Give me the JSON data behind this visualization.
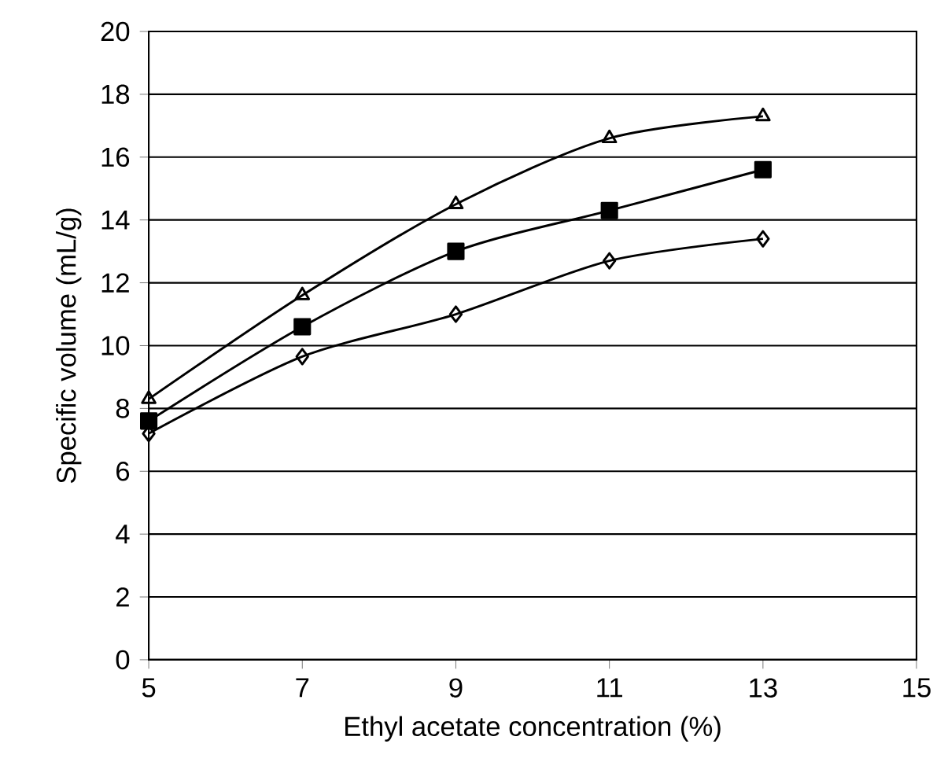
{
  "chart_data": {
    "type": "line",
    "xlabel": "Ethyl acetate concentration (%)",
    "ylabel": "Specific volume (mL/g)",
    "x": [
      5,
      7,
      9,
      11,
      13
    ],
    "series": [
      {
        "color": "#000000",
        "marker": "triangle",
        "values": [
          8.3,
          11.6,
          14.5,
          16.6,
          17.3
        ]
      },
      {
        "color": "#000000",
        "marker": "square",
        "values": [
          7.6,
          10.6,
          13.0,
          14.3,
          15.6
        ]
      },
      {
        "color": "#000000",
        "marker": "diamond",
        "values": [
          7.2,
          9.65,
          11.0,
          12.7,
          13.4
        ]
      }
    ],
    "xlim": [
      5,
      15
    ],
    "xticks": [
      5,
      7,
      9,
      11,
      13,
      15
    ],
    "ylim": [
      0,
      20
    ],
    "yticks": [
      0,
      2,
      4,
      6,
      8,
      10,
      12,
      14,
      16,
      18,
      20
    ],
    "grid": "y",
    "line_style": "solid"
  }
}
